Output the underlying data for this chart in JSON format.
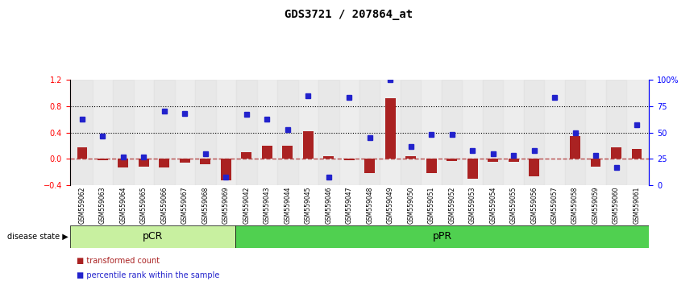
{
  "title": "GDS3721 / 207864_at",
  "samples": [
    "GSM559062",
    "GSM559063",
    "GSM559064",
    "GSM559065",
    "GSM559066",
    "GSM559067",
    "GSM559068",
    "GSM559069",
    "GSM559042",
    "GSM559043",
    "GSM559044",
    "GSM559045",
    "GSM559046",
    "GSM559047",
    "GSM559048",
    "GSM559049",
    "GSM559050",
    "GSM559051",
    "GSM559052",
    "GSM559053",
    "GSM559054",
    "GSM559055",
    "GSM559056",
    "GSM559057",
    "GSM559058",
    "GSM559059",
    "GSM559060",
    "GSM559061"
  ],
  "transformed_count": [
    0.17,
    -0.02,
    -0.13,
    -0.12,
    -0.13,
    -0.06,
    -0.08,
    -0.33,
    0.1,
    0.2,
    0.2,
    0.42,
    0.04,
    -0.02,
    -0.22,
    0.92,
    0.04,
    -0.22,
    -0.03,
    -0.3,
    -0.05,
    -0.05,
    -0.27,
    0.0,
    0.35,
    -0.12,
    0.17,
    0.15
  ],
  "percentile_rank": [
    0.63,
    0.47,
    0.27,
    0.27,
    0.7,
    0.68,
    0.3,
    0.08,
    0.67,
    0.63,
    0.53,
    0.85,
    0.08,
    0.83,
    0.45,
    1.0,
    0.37,
    0.48,
    0.48,
    0.33,
    0.3,
    0.28,
    0.33,
    0.83,
    0.5,
    0.28,
    0.17,
    0.57
  ],
  "group_labels": [
    "pCR",
    "pPR"
  ],
  "group_boundaries": [
    0,
    8,
    28
  ],
  "group_colors": [
    "#c8f0a0",
    "#50d050"
  ],
  "bar_color": "#aa2222",
  "dot_color": "#2222cc",
  "ylim_left": [
    -0.4,
    1.2
  ],
  "ylim_right": [
    0,
    100
  ],
  "hlines": [
    0.4,
    0.8
  ],
  "background_color": "#f0f0f0"
}
